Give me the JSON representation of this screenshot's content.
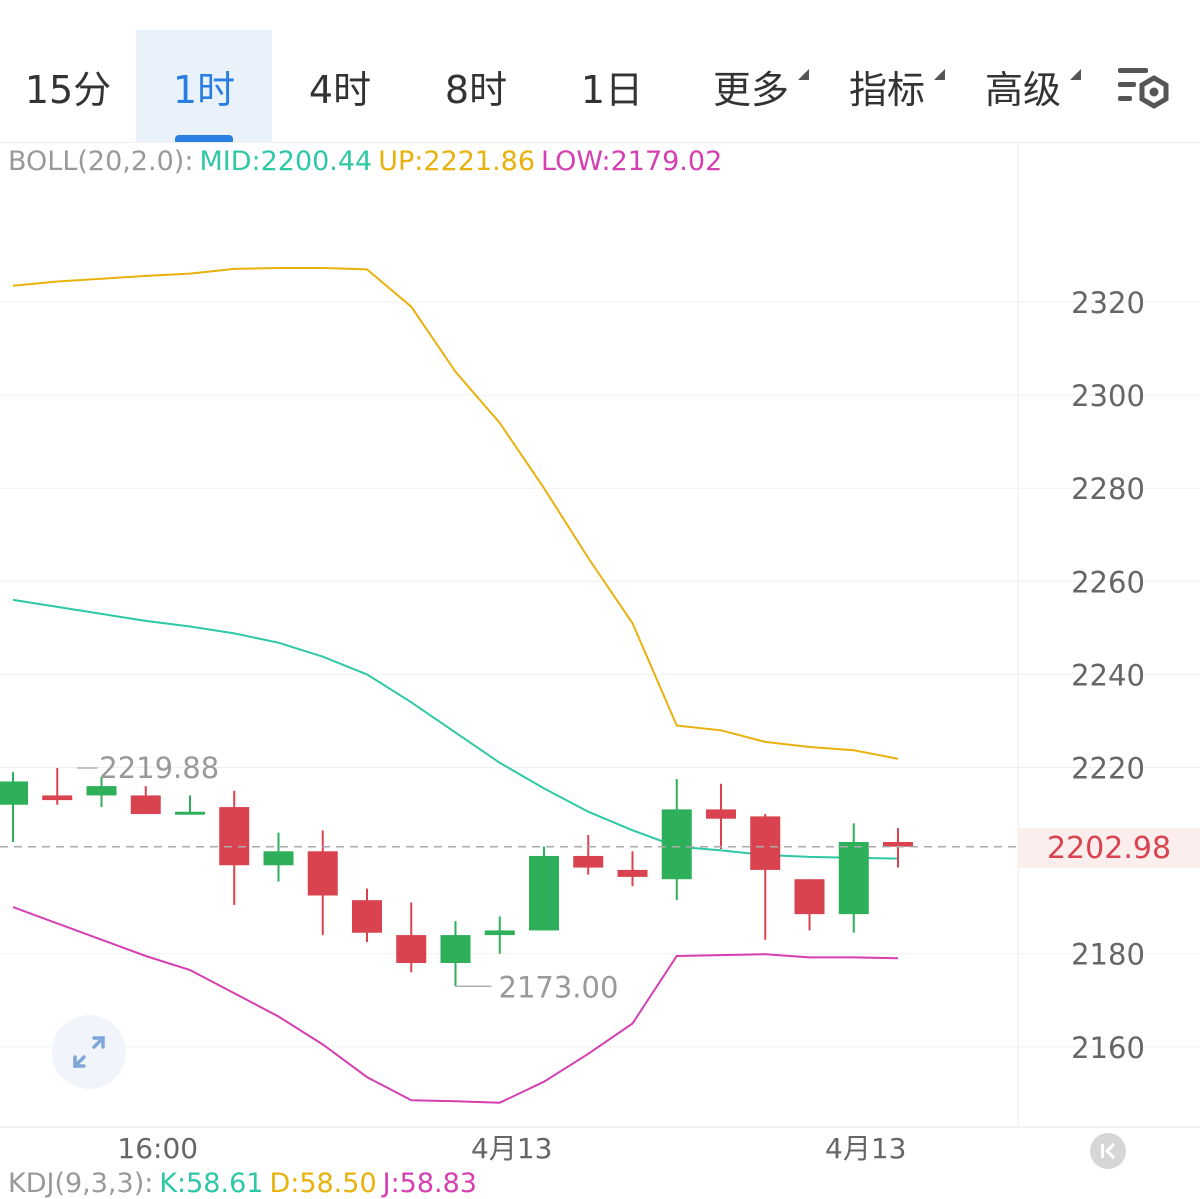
{
  "tabs": [
    {
      "label": "15分",
      "active": false,
      "dropdown": false
    },
    {
      "label": "1时",
      "active": true,
      "dropdown": false
    },
    {
      "label": "4时",
      "active": false,
      "dropdown": false
    },
    {
      "label": "8时",
      "active": false,
      "dropdown": false
    },
    {
      "label": "1日",
      "active": false,
      "dropdown": false
    },
    {
      "label": "更多",
      "active": false,
      "dropdown": true
    },
    {
      "label": "指标",
      "active": false,
      "dropdown": true
    },
    {
      "label": "高级",
      "active": false,
      "dropdown": true
    }
  ],
  "settings_icon": "chart-settings-icon",
  "boll": {
    "name": "BOLL(20,2.0):",
    "mid": "MID:2200.44",
    "up": "UP:2221.86",
    "low": "LOW:2179.02"
  },
  "kdj": {
    "name": "KDJ(9,3,3):",
    "k": "K:58.61",
    "d": "D:58.50",
    "j": "J:58.83"
  },
  "colors": {
    "up": "#d9434f",
    "down": "#2eb05a",
    "mid": "#2ec8a6",
    "upper": "#e8b10c",
    "lower": "#d43fb1",
    "legend_name": "#999999",
    "axis_text": "#666666",
    "active_tab": "#2a7de1"
  },
  "chart_data": {
    "type": "candlestick",
    "y_ticks": [
      2320,
      2300,
      2280,
      2260,
      2240,
      2220,
      2180,
      2160
    ],
    "ylim": [
      2143,
      2328
    ],
    "x_labels": [
      "16:00",
      "4月13",
      "4月13"
    ],
    "x_label_candle_index": [
      3,
      11,
      19
    ],
    "last_price": "2202.98",
    "max_label": "2219.88",
    "max_candle_index": 1,
    "min_label": "2173.00",
    "min_candle_index": 10,
    "candles": [
      {
        "o": 2212.0,
        "h": 2219.0,
        "l": 2204.0,
        "c": 2217.0
      },
      {
        "o": 2214.0,
        "h": 2219.9,
        "l": 2212.0,
        "c": 2213.0
      },
      {
        "o": 2214.0,
        "h": 2218.0,
        "l": 2211.5,
        "c": 2216.0
      },
      {
        "o": 2214.0,
        "h": 2216.0,
        "l": 2210.5,
        "c": 2210.0
      },
      {
        "o": 2210.0,
        "h": 2214.0,
        "l": 2210.0,
        "c": 2210.5
      },
      {
        "o": 2211.5,
        "h": 2215.0,
        "l": 2190.5,
        "c": 2199.0
      },
      {
        "o": 2199.0,
        "h": 2206.0,
        "l": 2195.5,
        "c": 2202.0
      },
      {
        "o": 2202.0,
        "h": 2206.5,
        "l": 2184.0,
        "c": 2192.5
      },
      {
        "o": 2191.5,
        "h": 2194.0,
        "l": 2182.5,
        "c": 2184.5
      },
      {
        "o": 2184.0,
        "h": 2191.0,
        "l": 2176.0,
        "c": 2178.0
      },
      {
        "o": 2178.0,
        "h": 2187.0,
        "l": 2173.0,
        "c": 2184.0
      },
      {
        "o": 2184.0,
        "h": 2188.0,
        "l": 2180.0,
        "c": 2185.0
      },
      {
        "o": 2185.0,
        "h": 2203.0,
        "l": 2185.0,
        "c": 2201.0
      },
      {
        "o": 2201.0,
        "h": 2205.5,
        "l": 2197.0,
        "c": 2198.5
      },
      {
        "o": 2198.0,
        "h": 2202.0,
        "l": 2194.5,
        "c": 2196.5
      },
      {
        "o": 2196.0,
        "h": 2217.5,
        "l": 2191.5,
        "c": 2211.0
      },
      {
        "o": 2211.0,
        "h": 2216.5,
        "l": 2202.5,
        "c": 2209.0
      },
      {
        "o": 2209.5,
        "h": 2210.0,
        "l": 2183.0,
        "c": 2198.0
      },
      {
        "o": 2196.0,
        "h": 2196.0,
        "l": 2185.0,
        "c": 2188.5
      },
      {
        "o": 2188.5,
        "h": 2208.0,
        "l": 2184.5,
        "c": 2204.0
      },
      {
        "o": 2204.0,
        "h": 2207.0,
        "l": 2198.5,
        "c": 2202.98
      }
    ],
    "series": [
      {
        "key": "up",
        "values": [
          2323.5,
          2324.4,
          2325.0,
          2325.6,
          2326.1,
          2327.1,
          2327.3,
          2327.3,
          2327.0,
          2319.0,
          2305.0,
          2294.0,
          2280.0,
          2265.0,
          2251.0,
          2229.0,
          2228.0,
          2225.5,
          2224.4,
          2223.7,
          2221.86
        ]
      },
      {
        "key": "mid",
        "values": [
          2256.0,
          2254.5,
          2253.0,
          2251.5,
          2250.3,
          2248.8,
          2246.8,
          2243.8,
          2240.0,
          2234.0,
          2227.5,
          2221.0,
          2215.5,
          2210.5,
          2206.5,
          2203.0,
          2202.2,
          2201.2,
          2200.8,
          2200.6,
          2200.44
        ]
      },
      {
        "key": "lower",
        "values": [
          2190.0,
          2186.5,
          2183.0,
          2179.5,
          2176.5,
          2171.5,
          2166.5,
          2160.5,
          2153.5,
          2148.5,
          2148.3,
          2148.0,
          2152.5,
          2158.5,
          2165.0,
          2179.5,
          2179.7,
          2179.9,
          2179.2,
          2179.2,
          2179.02
        ]
      }
    ]
  }
}
